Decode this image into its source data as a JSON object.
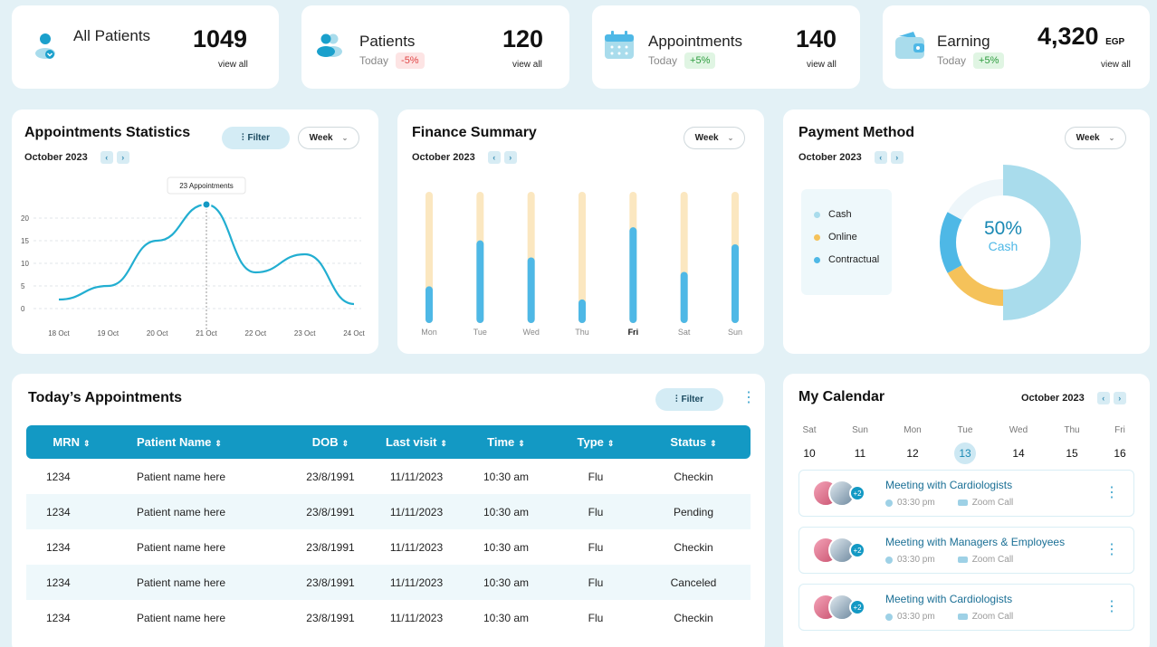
{
  "stats": [
    {
      "label": "All Patients",
      "value": "1049",
      "link": "view all",
      "sub": "",
      "badge": "",
      "badge_type": "",
      "icon": "patient-icon"
    },
    {
      "label": "Patients",
      "value": "120",
      "link": "view all",
      "sub": "Today",
      "badge": "-5%",
      "badge_type": "neg",
      "icon": "patients-group-icon"
    },
    {
      "label": "Appointments",
      "value": "140",
      "link": "view all",
      "sub": "Today",
      "badge": "+5%",
      "badge_type": "pos",
      "icon": "calendar-icon"
    },
    {
      "label": "Earning",
      "value": "4,320",
      "unit": "EGP",
      "link": "view all",
      "sub": "Today",
      "badge": "+5%",
      "badge_type": "pos",
      "icon": "wallet-icon"
    }
  ],
  "appointments_stats": {
    "title": "Appointments Statistics",
    "month": "October 2023",
    "filter_label": "Filter",
    "period": "Week",
    "tooltip": "23 Appointments"
  },
  "finance": {
    "title": "Finance Summary",
    "month": "October 2023",
    "period": "Week"
  },
  "payment": {
    "title": "Payment Method",
    "month": "October 2023",
    "period": "Week",
    "center_value": "50%",
    "center_label": "Cash",
    "legend": [
      {
        "label": "Cash",
        "color": "#a9dcec"
      },
      {
        "label": "Online",
        "color": "#f5c25a"
      },
      {
        "label": "Contractual",
        "color": "#4eb8e6"
      }
    ]
  },
  "chart_data": [
    {
      "type": "line",
      "x": [
        "18 Oct",
        "19 Oct",
        "20 Oct",
        "21 Oct",
        "22 Oct",
        "23 Oct",
        "24 Oct"
      ],
      "series": [
        {
          "values": [
            2,
            5,
            15,
            23,
            8,
            12,
            1
          ]
        }
      ],
      "yticks": [
        0,
        5,
        10,
        15,
        20
      ],
      "ylim": [
        0,
        25
      ],
      "annotation": "23 Appointments",
      "grid": true
    },
    {
      "type": "bar",
      "categories": [
        "Mon",
        "Tue",
        "Wed",
        "Thu",
        "Fri",
        "Sat",
        "Sun"
      ],
      "highlight": "Fri",
      "series": [
        {
          "values": [
            28,
            63,
            50,
            18,
            73,
            39,
            60
          ],
          "color": "#4eb8e6"
        },
        {
          "values": [
            100,
            100,
            100,
            100,
            100,
            100,
            100
          ],
          "color": "#fbe7c0"
        }
      ],
      "ylim": [
        0,
        100
      ]
    },
    {
      "type": "pie",
      "slices": [
        {
          "label": "Cash",
          "value": 50,
          "color": "#a9dcec"
        },
        {
          "label": "Online",
          "value": 17,
          "color": "#f5c25a"
        },
        {
          "label": "Contractual",
          "value": 16,
          "color": "#4eb8e6"
        },
        {
          "value": 17,
          "color": "#eef6fa"
        }
      ]
    }
  ],
  "today": {
    "title": "Today’s Appointments",
    "filter_label": "Filter",
    "columns": [
      "MRN",
      "Patient Name",
      "DOB",
      "Last visit",
      "Time",
      "Type",
      "Status"
    ],
    "rows": [
      {
        "mrn": "1234",
        "name": "Patient name here",
        "dob": "23/8/1991",
        "last": "11/11/2023",
        "time": "10:30 am",
        "type": "Flu",
        "status": "Checkin",
        "status_type": "checkin"
      },
      {
        "mrn": "1234",
        "name": "Patient name here",
        "dob": "23/8/1991",
        "last": "11/11/2023",
        "time": "10:30 am",
        "type": "Flu",
        "status": "Pending",
        "status_type": "pending"
      },
      {
        "mrn": "1234",
        "name": "Patient name here",
        "dob": "23/8/1991",
        "last": "11/11/2023",
        "time": "10:30 am",
        "type": "Flu",
        "status": "Checkin",
        "status_type": "checkin"
      },
      {
        "mrn": "1234",
        "name": "Patient name here",
        "dob": "23/8/1991",
        "last": "11/11/2023",
        "time": "10:30 am",
        "type": "Flu",
        "status": "Canceled",
        "status_type": "canceled"
      },
      {
        "mrn": "1234",
        "name": "Patient name here",
        "dob": "23/8/1991",
        "last": "11/11/2023",
        "time": "10:30 am",
        "type": "Flu",
        "status": "Checkin",
        "status_type": "checkin"
      }
    ]
  },
  "calendar": {
    "title": "My Calendar",
    "month": "October 2023",
    "days": [
      {
        "name": "Sat",
        "num": "10"
      },
      {
        "name": "Sun",
        "num": "11"
      },
      {
        "name": "Mon",
        "num": "12"
      },
      {
        "name": "Tue",
        "num": "13",
        "selected": true
      },
      {
        "name": "Wed",
        "num": "14"
      },
      {
        "name": "Thu",
        "num": "15"
      },
      {
        "name": "Fri",
        "num": "16"
      }
    ],
    "events": [
      {
        "title": "Meeting with Cardiologists",
        "time": "03:30 pm",
        "place": "Zoom Call",
        "extra": "+2"
      },
      {
        "title": "Meeting with Managers & Employees",
        "time": "03:30 pm",
        "place": "Zoom Call",
        "extra": "+2"
      },
      {
        "title": "Meeting with Cardiologists",
        "time": "03:30 pm",
        "place": "Zoom Call",
        "extra": "+2"
      }
    ]
  }
}
